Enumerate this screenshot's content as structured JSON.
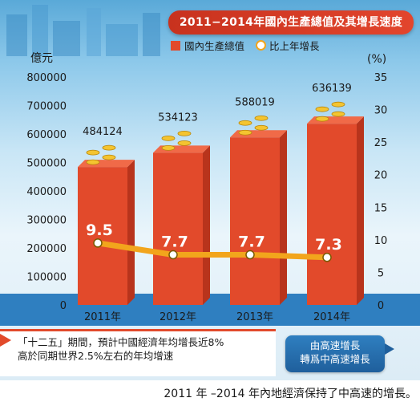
{
  "colors": {
    "bar": "#e24a2b",
    "bar_dark": "#b8341c",
    "line": "#f2a51c",
    "ground": "#2f7fc0",
    "title_bg": "#d43b24",
    "callout_bg": "#2060a0"
  },
  "header": {
    "title": "2011−2014年國內生產總值及其增長速度"
  },
  "chart_data": {
    "type": "bar",
    "categories": [
      "2011年",
      "2012年",
      "2013年",
      "2014年"
    ],
    "series": [
      {
        "name": "國內生產總值",
        "axis": "left",
        "values": [
          484124,
          534123,
          588019,
          636139
        ],
        "labels": [
          "484124",
          "534123",
          "588019",
          "636139"
        ]
      },
      {
        "name": "比上年增長",
        "axis": "right",
        "type": "line",
        "values": [
          9.5,
          7.7,
          7.7,
          7.3
        ],
        "labels": [
          "9.5",
          "7.7",
          "7.7",
          "7.3"
        ]
      }
    ],
    "y_left": {
      "unit": "億元",
      "range": [
        0,
        800000
      ],
      "ticks": [
        "0",
        "100000",
        "200000",
        "300000",
        "400000",
        "500000",
        "600000",
        "700000",
        "800000"
      ]
    },
    "y_right": {
      "unit": "(%)",
      "range": [
        0,
        35
      ],
      "ticks": [
        "0",
        "5",
        "10",
        "15",
        "20",
        "25",
        "30",
        "35"
      ]
    },
    "legend_position": "top-right",
    "grid": false
  },
  "note": {
    "line1": "「十二五」期間，預計中國經濟年均增長近8%",
    "line2": "高於同期世界2.5%左右的年均增速"
  },
  "callout": {
    "line1": "由高速增長",
    "line2": "轉爲中高速增長"
  },
  "caption": {
    "text": "2011 年 –2014 年內地經濟保持了中高速的增長。"
  }
}
